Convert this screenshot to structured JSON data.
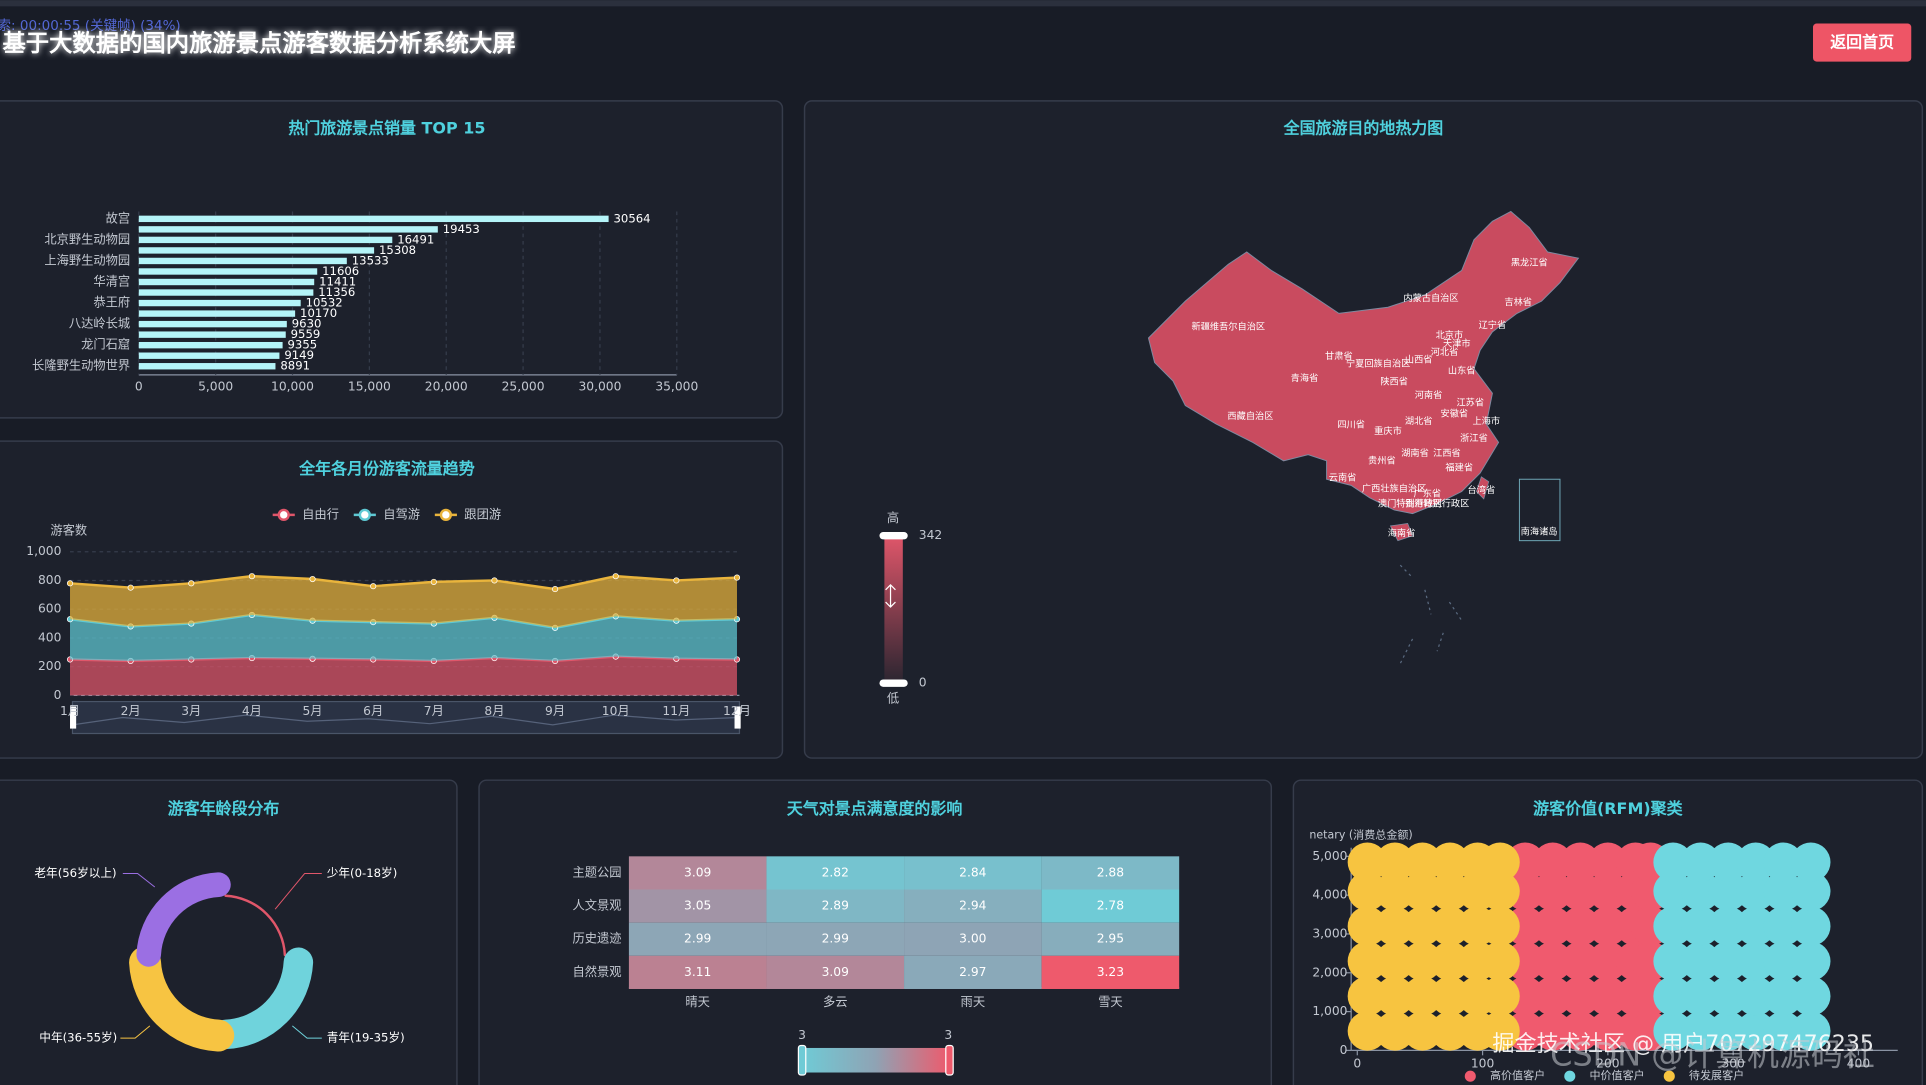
{
  "header": {
    "overlay_text": "索: 00:00:55 (关键帧) (34%)",
    "title": "基于大数据的国内旅游景点游客数据分析系统大屏",
    "back_button": "返回首页"
  },
  "chart_data": [
    {
      "type": "bar",
      "orientation": "horizontal",
      "title": "热门旅游景点销量 TOP 15",
      "categories": [
        "故宫",
        null,
        "北京野生动物园",
        null,
        "上海野生动物园",
        null,
        "华清宫",
        null,
        "恭王府",
        null,
        "八达岭长城",
        null,
        "龙门石窟",
        null,
        "长隆野生动物世界"
      ],
      "values": [
        30564,
        19453,
        16491,
        15308,
        13533,
        11606,
        11411,
        11356,
        10532,
        10170,
        9630,
        9559,
        9355,
        9149,
        8891
      ],
      "color": "#b4f4f8",
      "xlim": [
        0,
        35000
      ],
      "xticks": [
        0,
        {
          "value": 5000,
          "label": "5,000"
        },
        {
          "value": 10000,
          "label": "10,000"
        },
        {
          "value": 15000,
          "label": "15,000"
        },
        {
          "value": 20000,
          "label": "20,000"
        },
        {
          "value": 25000,
          "label": "25,000"
        },
        {
          "value": 30000,
          "label": "30,000"
        },
        {
          "value": 35000,
          "label": "35,000"
        }
      ],
      "grid": true
    },
    {
      "type": "area",
      "stacked": true,
      "title": "全年各月份游客流量趋势",
      "y_label": "游客数",
      "categories": [
        "1月",
        "2月",
        "3月",
        "4月",
        "5月",
        "6月",
        "7月",
        "8月",
        "9月",
        "10月",
        "11月",
        "12月"
      ],
      "series": [
        {
          "name": "自由行",
          "color": "#e0566a",
          "values": [
            250,
            240,
            250,
            260,
            255,
            250,
            240,
            260,
            240,
            270,
            255,
            250
          ]
        },
        {
          "name": "自驾游",
          "color": "#5fc9d4",
          "values": [
            280,
            240,
            250,
            300,
            265,
            260,
            260,
            280,
            230,
            280,
            265,
            280
          ]
        },
        {
          "name": "跟团游",
          "color": "#e9b43c",
          "values": [
            250,
            270,
            280,
            270,
            290,
            250,
            290,
            260,
            270,
            280,
            280,
            290
          ]
        }
      ],
      "ylim": [
        0,
        1000
      ],
      "yticks": [
        0,
        200,
        400,
        600,
        800,
        {
          "value": 1000,
          "label": "1,000"
        }
      ],
      "grid": true,
      "legend": "top"
    },
    {
      "type": "map",
      "title": "全国旅游目的地热力图",
      "color": "#c94b5f",
      "regions": [
        "黑龙江省",
        "内蒙古自治区",
        "吉林省",
        "辽宁省",
        "新疆维吾尔自治区",
        "北京市",
        "天津市",
        "河北省",
        "甘肃省",
        "宁夏回族自治区",
        "山西省",
        "山东省",
        "青海省",
        "陕西省",
        "河南省",
        "江苏省",
        "安徽省",
        "上海市",
        "西藏自治区",
        "四川省",
        "重庆市",
        "湖北省",
        "浙江省",
        "湖南省",
        "江西省",
        "贵州省",
        "福建省",
        "云南省",
        "台湾省",
        "广西壮族自治区",
        "广东省",
        "香港特别行政区",
        "澳门特别行政区",
        "海南省",
        "南海诸岛"
      ],
      "visual_map": {
        "min": 0,
        "max": 342,
        "high_label": "高",
        "low_label": "低",
        "colors": [
          "#2a2530",
          "#e0566a"
        ]
      }
    },
    {
      "type": "pie",
      "rose": true,
      "title": "游客年龄段分布",
      "categories": [
        "少年(0-18岁)",
        "青年(19-35岁)",
        "中年(36-55岁)",
        "老年(56岁以上)"
      ],
      "values": [
        2,
        24,
        26,
        20
      ],
      "colors": [
        "#e0566a",
        "#6fd3dc",
        "#f7c442",
        "#9b6fe3"
      ]
    },
    {
      "type": "heatmap",
      "title": "天气对景点满意度的影响",
      "categories": [
        "晴天",
        "多云",
        "雨天",
        "雪天"
      ],
      "rows": [
        "主题公园",
        "人文景观",
        "历史遗迹",
        "自然景观"
      ],
      "values": [
        [
          3.09,
          2.82,
          2.84,
          2.88
        ],
        [
          3.05,
          2.89,
          2.94,
          2.78
        ],
        [
          2.99,
          2.99,
          3.0,
          2.95
        ],
        [
          3.11,
          3.09,
          2.97,
          3.23
        ]
      ],
      "value_labels": [
        [
          "3.09",
          "2.82",
          "2.84",
          "2.88"
        ],
        [
          "3.05",
          "2.89",
          "2.94",
          "2.78"
        ],
        [
          "2.99",
          "2.99",
          "3.00",
          "2.95"
        ],
        [
          "3.11",
          "3.09",
          "2.97",
          "3.23"
        ]
      ],
      "visual_map": {
        "min": {
          "value": 2.78,
          "label": "3"
        },
        "max": {
          "value": 3.23,
          "label": "3"
        }
      },
      "colors": [
        "#6fcbd6",
        "#8fa3b4",
        "#ee5a6c"
      ]
    },
    {
      "type": "scatter",
      "title": "游客价值(RFM)聚类",
      "y_label": "netary (消费总金额)",
      "series": [
        {
          "name": "高价值客户",
          "color": "#f05a6e",
          "x": [
            134,
            156,
            178,
            200,
            222,
            234,
            134,
            156,
            178,
            200,
            222,
            234,
            134,
            156,
            178,
            200,
            222,
            234,
            134,
            156,
            178,
            200,
            222,
            234,
            134,
            156,
            178,
            200,
            222,
            234,
            134,
            156,
            178,
            200,
            222,
            234
          ],
          "y": [
            500,
            500,
            500,
            500,
            500,
            500,
            1400,
            1400,
            1400,
            1400,
            1400,
            1400,
            2300,
            2300,
            2300,
            2300,
            2300,
            2300,
            3200,
            3200,
            3200,
            3200,
            3200,
            3200,
            4100,
            4100,
            4100,
            4100,
            4100,
            4100,
            4850,
            4850,
            4850,
            4850,
            4850,
            4850
          ]
        },
        {
          "name": "中价值客户",
          "color": "#6fd7e0",
          "x": [
            252,
            274,
            296,
            318,
            340,
            362,
            252,
            274,
            296,
            318,
            340,
            362,
            252,
            274,
            296,
            318,
            340,
            362,
            252,
            274,
            296,
            318,
            340,
            362,
            252,
            274,
            296,
            318,
            340,
            362,
            252,
            274,
            296,
            318,
            340,
            362
          ],
          "y": [
            500,
            500,
            500,
            500,
            500,
            500,
            1400,
            1400,
            1400,
            1400,
            1400,
            1400,
            2300,
            2300,
            2300,
            2300,
            2300,
            2300,
            3200,
            3200,
            3200,
            3200,
            3200,
            3200,
            4100,
            4100,
            4100,
            4100,
            4100,
            4100,
            4850,
            4850,
            4850,
            4850,
            4850,
            4850
          ]
        },
        {
          "name": "待发展客户",
          "color": "#f7c440",
          "x": [
            8,
            30,
            52,
            74,
            96,
            114,
            8,
            30,
            52,
            74,
            96,
            114,
            8,
            30,
            52,
            74,
            96,
            114,
            8,
            30,
            52,
            74,
            96,
            114,
            8,
            30,
            52,
            74,
            96,
            114,
            8,
            30,
            52,
            74,
            96,
            114
          ],
          "y": [
            500,
            500,
            500,
            500,
            500,
            500,
            1400,
            1400,
            1400,
            1400,
            1400,
            1400,
            2300,
            2300,
            2300,
            2300,
            2300,
            2300,
            3200,
            3200,
            3200,
            3200,
            3200,
            3200,
            4100,
            4100,
            4100,
            4100,
            4100,
            4100,
            4850,
            4850,
            4850,
            4850,
            4850,
            4850
          ]
        }
      ],
      "xlim": [
        0,
        400
      ],
      "xticks": [
        0,
        100,
        200,
        300,
        400
      ],
      "ylim": [
        0,
        5000
      ],
      "yticks": [
        0,
        {
          "value": 1000,
          "label": "1,000"
        },
        {
          "value": 2000,
          "label": "2,000"
        },
        {
          "value": 3000,
          "label": "3,000"
        },
        {
          "value": 4000,
          "label": "4,000"
        },
        {
          "value": 5000,
          "label": "5,000"
        }
      ],
      "legend": "bottom"
    }
  ],
  "watermark": [
    "掘金技术社区 @ 用户707297476235",
    "CSDN @计算机源码社"
  ]
}
